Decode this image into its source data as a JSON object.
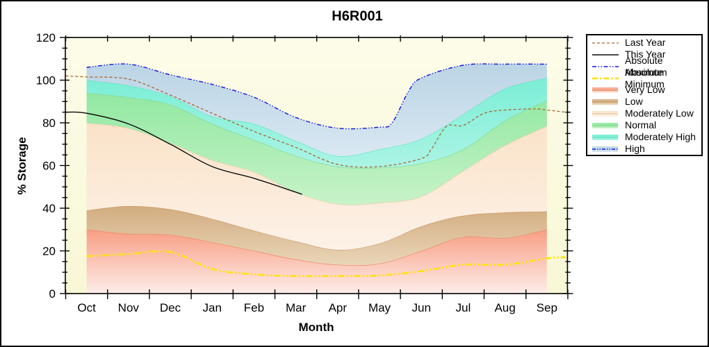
{
  "chart_data": {
    "type": "area",
    "title": "H6R001",
    "xlabel": "Month",
    "ylabel": "% Storage",
    "ylim": [
      0,
      120
    ],
    "y_major_step": 20,
    "y_minor_step": 5,
    "grid": "off",
    "legend_position": "outside-top-right",
    "y_ticks": [
      "0",
      "20",
      "40",
      "60",
      "80",
      "100",
      "120"
    ],
    "months": [
      "Oct",
      "Nov",
      "Dec",
      "Jan",
      "Feb",
      "Mar",
      "Apr",
      "May",
      "Jun",
      "Jul",
      "Aug",
      "Sep"
    ],
    "plot_bg_top": "#FCFCE9",
    "plot_bg_bottom": "#F8F8D6",
    "frame_color": "#000000",
    "bands": [
      {
        "name": "Very Low",
        "edge": "#EE8564",
        "fill_top": "#F89E83",
        "fill_bottom": "#FDEDE9",
        "top_values": [
          30,
          28,
          27.5,
          24,
          20,
          16,
          13.5,
          14,
          20,
          26.5,
          26,
          30
        ]
      },
      {
        "name": "Low",
        "edge": "#C89B66",
        "fill_top": "#D2AC80",
        "fill_bottom": "#EAD6B9",
        "top_values": [
          39,
          41,
          39.5,
          35,
          29.5,
          24.5,
          20.5,
          23.5,
          31.5,
          36.5,
          38,
          38.5
        ]
      },
      {
        "name": "Moderately Low",
        "edge": "#EACBA4",
        "fill_top": "#FAE2C8",
        "fill_bottom": "#FDF2E8",
        "top_values": [
          80,
          77.5,
          70.5,
          62.5,
          57,
          47.5,
          42,
          42.5,
          45.5,
          57.5,
          69.5,
          78.5
        ]
      },
      {
        "name": "Normal",
        "edge": "#7FD98C",
        "fill_top": "#91E8A1",
        "fill_bottom": "#C8F3C9",
        "top_values": [
          94,
          92,
          88.5,
          79.5,
          72,
          64.5,
          59.5,
          59,
          61,
          67.5,
          81,
          90.5
        ]
      },
      {
        "name": "Moderately High",
        "edge": "#5FE5C3",
        "fill_top": "#7BEED5",
        "fill_bottom": "#ACF4E5",
        "top_values": [
          100,
          97.5,
          92.5,
          83,
          79.5,
          71.5,
          64.5,
          67.5,
          72.5,
          84,
          96,
          101
        ]
      },
      {
        "name": "High",
        "edge": "none",
        "fill_top": "#BBD4E5",
        "fill_bottom": "#D9E8F2",
        "top_values": [
          [
            0,
            106
          ],
          [
            1,
            107.5
          ],
          [
            2,
            102.5
          ],
          [
            3,
            98
          ],
          [
            4,
            92
          ],
          [
            5,
            82.5
          ],
          [
            6,
            77.5
          ],
          [
            7,
            78
          ],
          [
            7.3,
            80
          ],
          [
            7.7,
            95
          ],
          [
            8,
            101
          ],
          [
            9,
            107
          ],
          [
            10,
            107.5
          ],
          [
            11,
            107.5
          ]
        ]
      }
    ],
    "lines": [
      {
        "name": "Absolute Maximum",
        "color": "#1212DD",
        "width": 1.4,
        "dash": "6 2.5 1.5 2.5 1.5 2.5",
        "points": [
          [
            0,
            106
          ],
          [
            1,
            107.5
          ],
          [
            2,
            102.5
          ],
          [
            3,
            98
          ],
          [
            4,
            92
          ],
          [
            5,
            82.5
          ],
          [
            6,
            77.5
          ],
          [
            7,
            78
          ],
          [
            7.3,
            80
          ],
          [
            7.7,
            95
          ],
          [
            8,
            101
          ],
          [
            9,
            107
          ],
          [
            10,
            107.5
          ],
          [
            11,
            107.5
          ]
        ]
      },
      {
        "name": "Absolute Minimum",
        "color": "#FFE216",
        "width": 2.8,
        "dash": "9 3 2.5 3 2.5 3",
        "points": [
          [
            0,
            17.5
          ],
          [
            1,
            18.5
          ],
          [
            2,
            19.5
          ],
          [
            3,
            11.5
          ],
          [
            4,
            9
          ],
          [
            5,
            8.2
          ],
          [
            6,
            8.2
          ],
          [
            7,
            8.5
          ],
          [
            8,
            10.5
          ],
          [
            9,
            13.5
          ],
          [
            10,
            13.5
          ],
          [
            11,
            16.5
          ],
          [
            11.45,
            17
          ]
        ]
      },
      {
        "name": "Last Year",
        "color": "#A8652F",
        "width": 1.3,
        "dash": "4 3",
        "points": [
          [
            -0.5,
            102
          ],
          [
            0,
            101.5
          ],
          [
            1,
            100.5
          ],
          [
            2,
            93
          ],
          [
            3,
            84.5
          ],
          [
            4,
            76
          ],
          [
            5,
            68.5
          ],
          [
            6,
            60.5
          ],
          [
            7,
            59.5
          ],
          [
            8,
            63.3
          ],
          [
            8.25,
            68
          ],
          [
            8.6,
            78.3
          ],
          [
            9,
            78.8
          ],
          [
            9.5,
            84.5
          ],
          [
            10,
            86
          ],
          [
            10.7,
            86.5
          ],
          [
            11,
            86
          ],
          [
            11.45,
            85
          ]
        ]
      },
      {
        "name": "This Year",
        "color": "#0A0A0A",
        "width": 1.4,
        "dash": "",
        "points": [
          [
            -0.5,
            85
          ],
          [
            0,
            84.5
          ],
          [
            1,
            79.5
          ],
          [
            2,
            70
          ],
          [
            3,
            59.5
          ],
          [
            4,
            54
          ],
          [
            5,
            47.5
          ],
          [
            5.15,
            46.5
          ]
        ]
      }
    ],
    "legend": [
      {
        "label": "Last Year",
        "kind": "line",
        "color": "#A8652F",
        "width": 1.3,
        "dash": "4 3"
      },
      {
        "label": "This Year",
        "kind": "line",
        "color": "#0A0A0A",
        "width": 1.4,
        "dash": ""
      },
      {
        "label": "Absolute Maximum",
        "kind": "line",
        "color": "#1212DD",
        "width": 1.4,
        "dash": "6 2.5 1.5 2.5 1.5 2.5"
      },
      {
        "label": "Absolute Minimum",
        "kind": "line",
        "color": "#FFE216",
        "width": 2.8,
        "dash": "8 3 2.5 3"
      },
      {
        "label": "Very Low",
        "kind": "band",
        "edge": "#EE8564",
        "fill_top": "#F89E83",
        "fill_bottom": "#FDEDE9"
      },
      {
        "label": "Low",
        "kind": "band",
        "edge": "#C89B66",
        "fill_top": "#D2AC80",
        "fill_bottom": "#EAD6B9"
      },
      {
        "label": "Moderately Low",
        "kind": "band",
        "edge": "#EACBA4",
        "fill_top": "#FAE2C8",
        "fill_bottom": "#FDF2E8"
      },
      {
        "label": "Normal",
        "kind": "band",
        "edge": "#7FD98C",
        "fill_top": "#91E8A1",
        "fill_bottom": "#C8F3C9"
      },
      {
        "label": "Moderately High",
        "kind": "band",
        "edge": "#5FE5C3",
        "fill_top": "#7BEED5",
        "fill_bottom": "#ACF4E5"
      },
      {
        "label": "High",
        "kind": "band",
        "edge": "#1212DD",
        "edge_dash": "5 2 1.5 2 1.5 2",
        "fill_top": "#BBD4E5",
        "fill_bottom": "#D9E8F2"
      }
    ]
  }
}
